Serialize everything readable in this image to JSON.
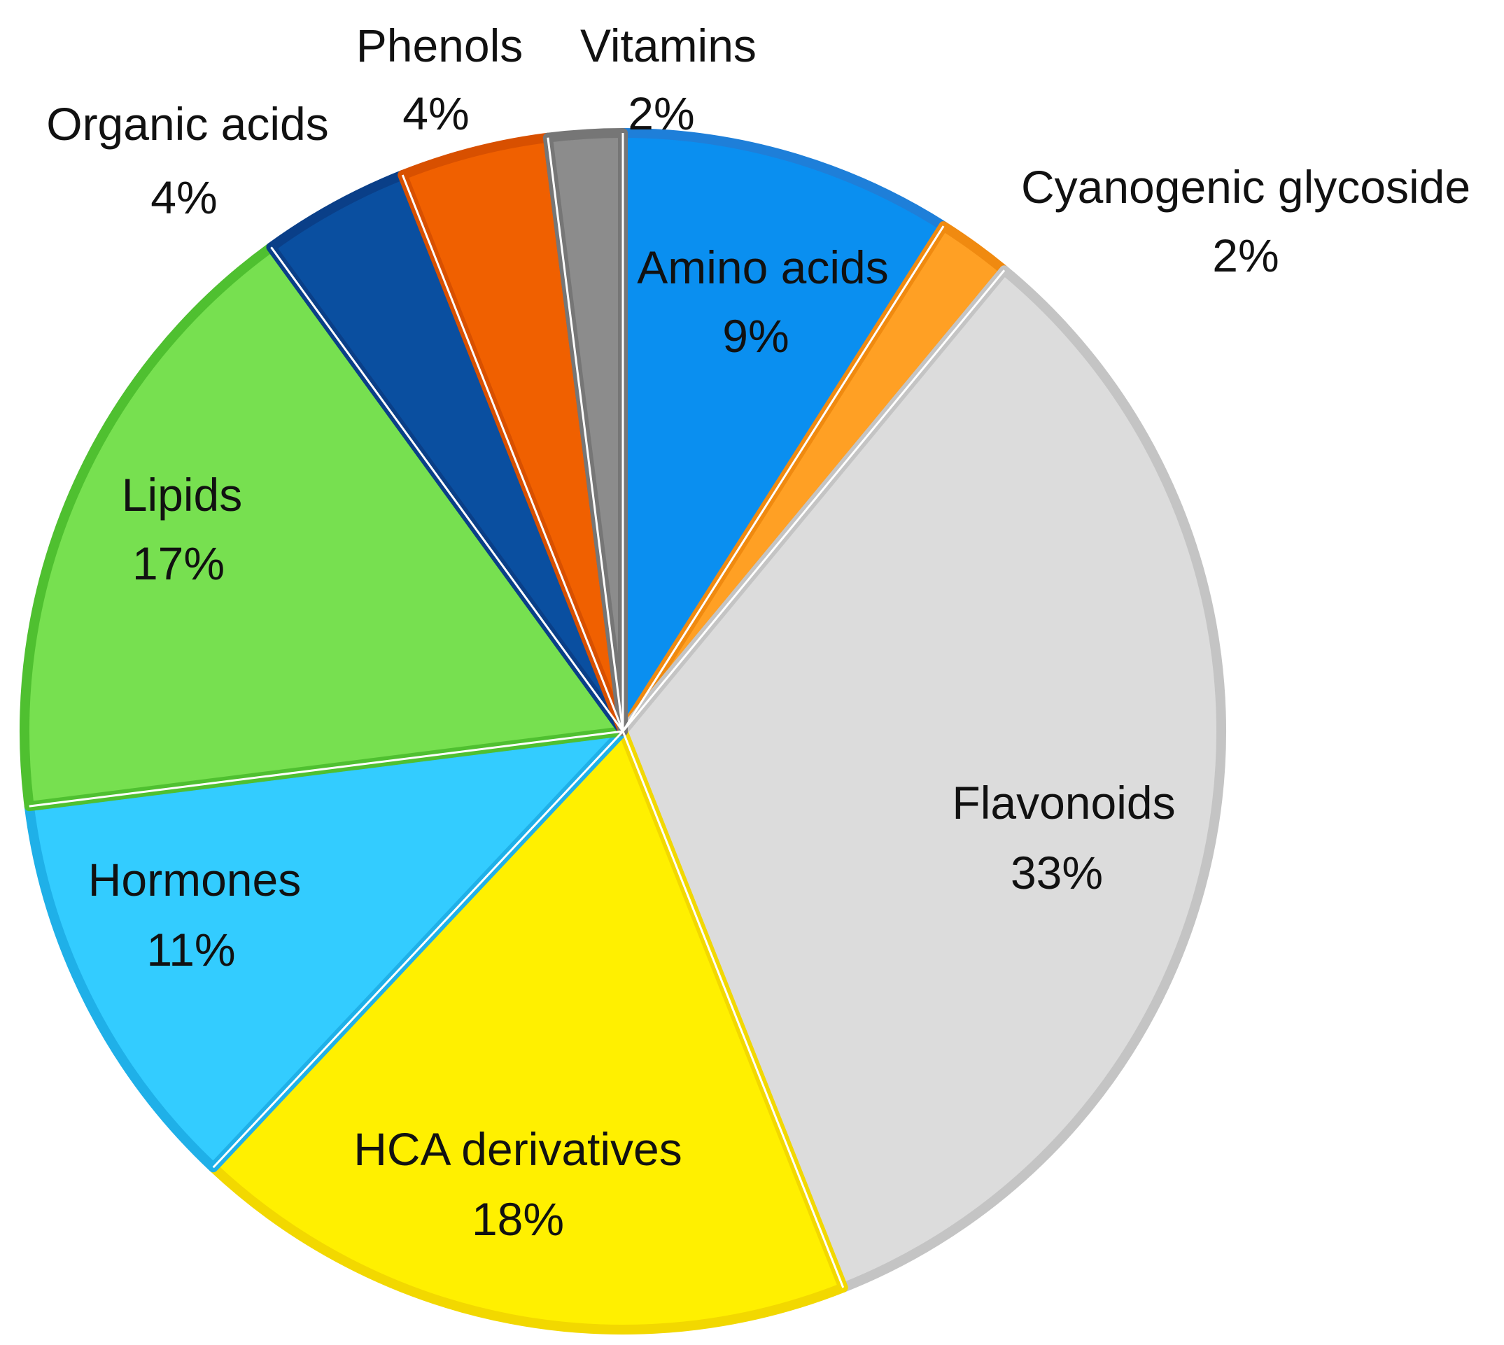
{
  "chart_data": {
    "type": "pie",
    "title": "",
    "slices": [
      {
        "label": "Amino acids",
        "percent_label": "9%",
        "value": 9,
        "color": "#0A8FF0",
        "edge": "#1E7FD9"
      },
      {
        "label": "Cyanogenic glycoside",
        "percent_label": "2%",
        "value": 2,
        "color": "#FFA024",
        "edge": "#F08A10"
      },
      {
        "label": "Flavonoids",
        "percent_label": "33%",
        "value": 33,
        "color": "#DCDCDC",
        "edge": "#C4C4C4"
      },
      {
        "label": "HCA derivatives",
        "percent_label": "18%",
        "value": 18,
        "color": "#FFF000",
        "edge": "#F2D800"
      },
      {
        "label": "Hormones",
        "percent_label": "11%",
        "value": 11,
        "color": "#33CCFF",
        "edge": "#1FB0E8"
      },
      {
        "label": "Lipids",
        "percent_label": "17%",
        "value": 17,
        "color": "#77E050",
        "edge": "#4FC030"
      },
      {
        "label": "Organic acids",
        "percent_label": "4%",
        "value": 4,
        "color": "#0A4FA0",
        "edge": "#0A3F88"
      },
      {
        "label": "Phenols",
        "percent_label": "4%",
        "value": 4,
        "color": "#F06000",
        "edge": "#D85000"
      },
      {
        "label": "Vitamins",
        "percent_label": "2%",
        "value": 2,
        "color": "#8C8C8C",
        "edge": "#767676"
      }
    ],
    "start": "top (12 o'clock)",
    "direction": "clockwise",
    "legend": "none"
  }
}
